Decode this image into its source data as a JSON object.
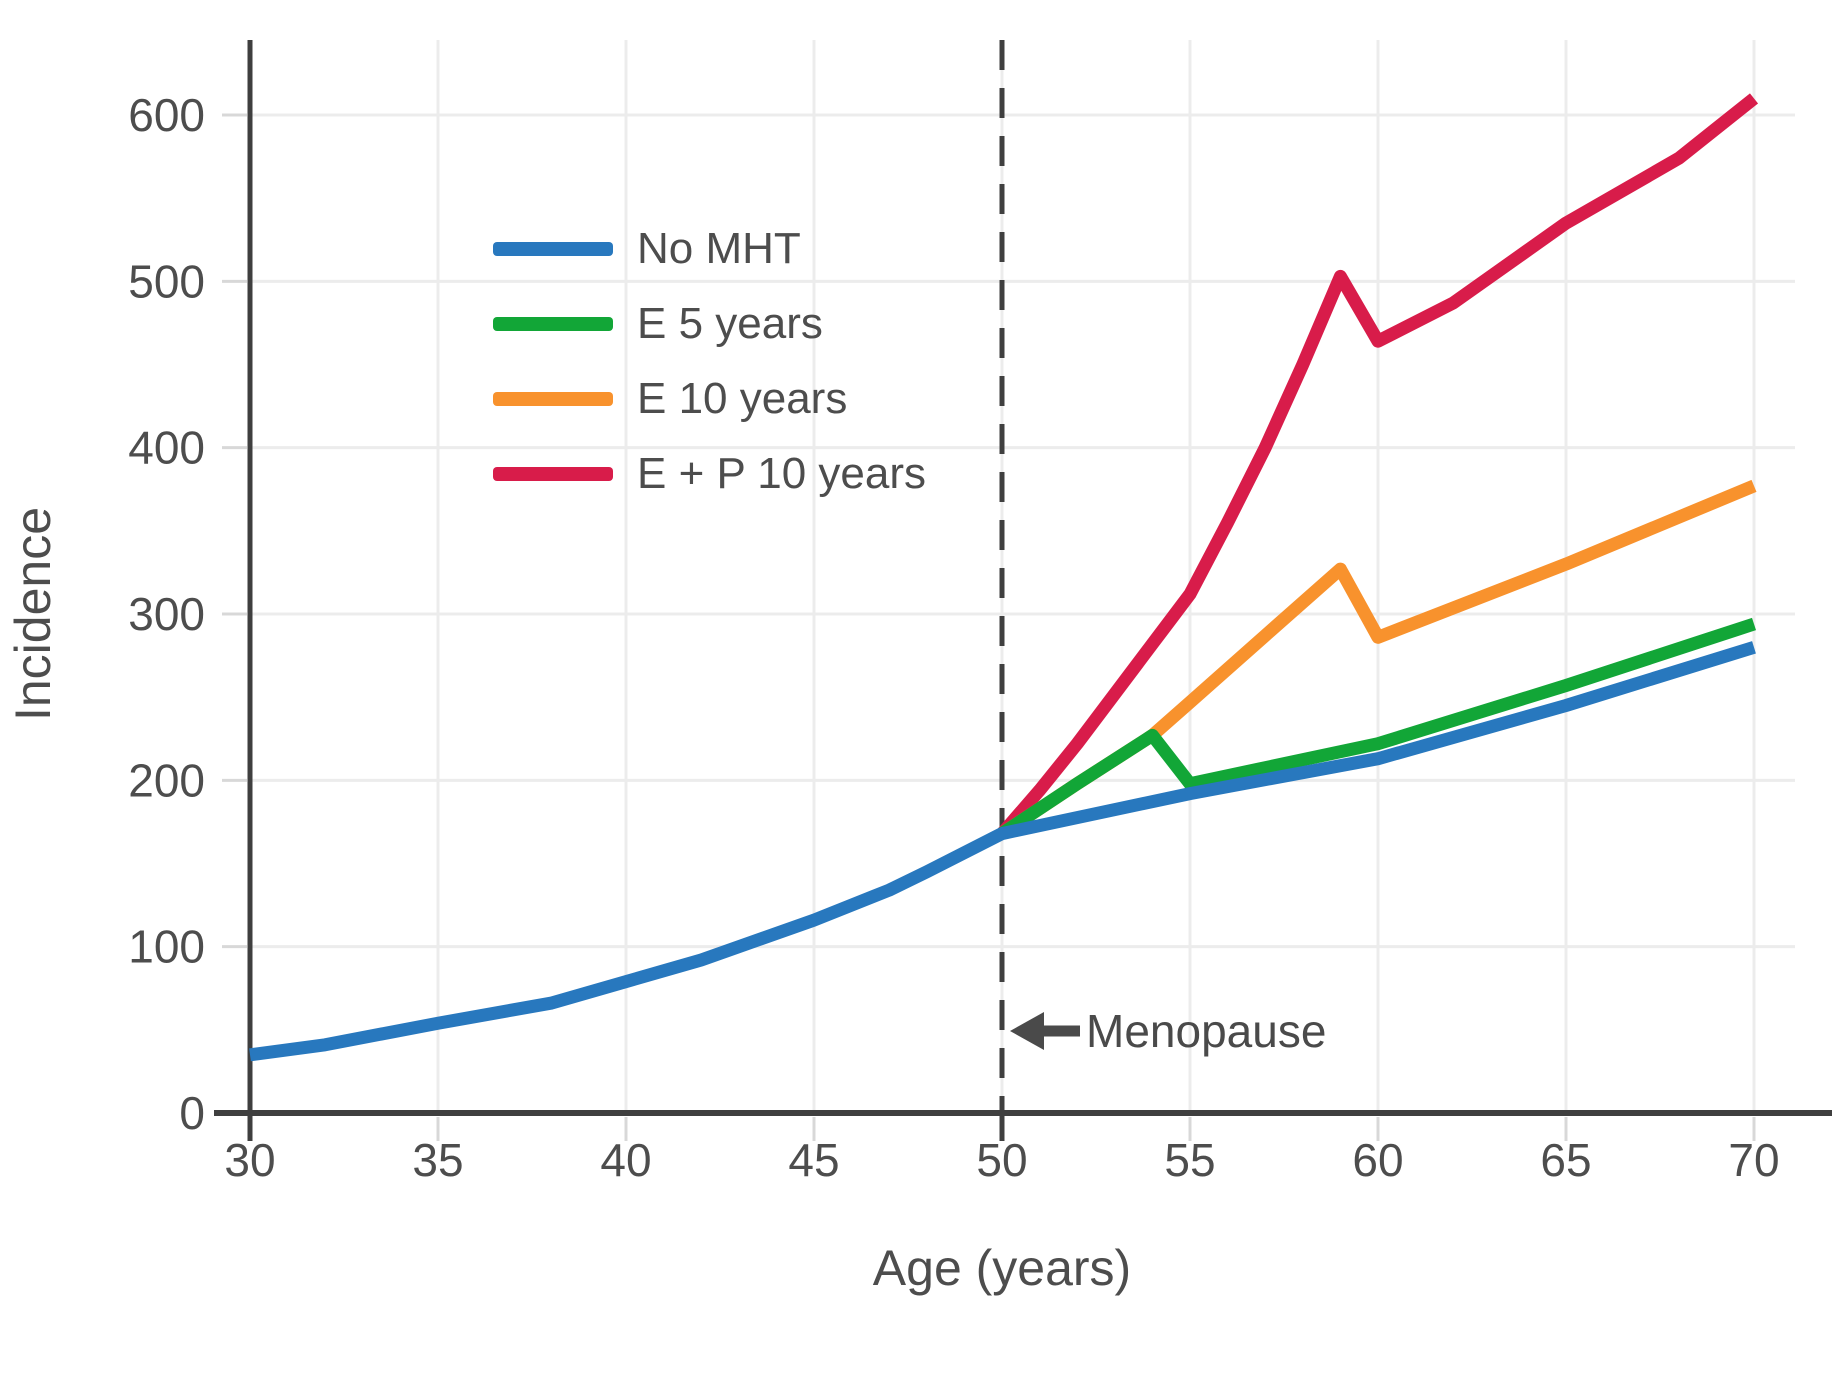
{
  "chart_data": {
    "type": "line",
    "title": "",
    "xlabel": "Age (years)",
    "ylabel": "Incidence",
    "x_ticks": [
      30,
      35,
      40,
      45,
      50,
      55,
      60,
      65,
      70
    ],
    "y_ticks": [
      0,
      100,
      200,
      300,
      400,
      500,
      600
    ],
    "x_range": [
      30,
      70
    ],
    "y_range": [
      0,
      660
    ],
    "grid": true,
    "series": [
      {
        "name": "No MHT",
        "color": "#2878BE",
        "points": [
          [
            30,
            35
          ],
          [
            32,
            41
          ],
          [
            35,
            54
          ],
          [
            38,
            66
          ],
          [
            40,
            79
          ],
          [
            42,
            92
          ],
          [
            45,
            116
          ],
          [
            47,
            134
          ],
          [
            48,
            145
          ],
          [
            50,
            168
          ],
          [
            55,
            192
          ],
          [
            60,
            213
          ],
          [
            65,
            245
          ],
          [
            70,
            280
          ]
        ]
      },
      {
        "name": "E 5 years",
        "color": "#12A637",
        "points": [
          [
            50,
            168
          ],
          [
            52,
            198
          ],
          [
            54,
            227
          ],
          [
            55,
            198
          ],
          [
            60,
            222
          ],
          [
            65,
            257
          ],
          [
            70,
            294
          ]
        ]
      },
      {
        "name": "E 10 years",
        "color": "#F8922D",
        "points": [
          [
            50,
            168
          ],
          [
            52,
            198
          ],
          [
            54,
            227
          ],
          [
            55,
            247
          ],
          [
            57,
            287
          ],
          [
            59,
            327
          ],
          [
            60,
            286
          ],
          [
            65,
            330
          ],
          [
            70,
            377
          ]
        ]
      },
      {
        "name": "E + P 10 years",
        "color": "#D81C4A",
        "points": [
          [
            50,
            168
          ],
          [
            51,
            194
          ],
          [
            52,
            222
          ],
          [
            53,
            252
          ],
          [
            54,
            282
          ],
          [
            55,
            312
          ],
          [
            56,
            355
          ],
          [
            57,
            400
          ],
          [
            58,
            450
          ],
          [
            59,
            503
          ],
          [
            60,
            464
          ],
          [
            62,
            487
          ],
          [
            65,
            535
          ],
          [
            68,
            574
          ],
          [
            70,
            610
          ]
        ]
      }
    ],
    "reference_line": {
      "x": 50,
      "style": "dashed",
      "color": "#3F3F3F"
    },
    "annotation": {
      "label": "Menopause",
      "arrow_direction": "left",
      "x": 50,
      "y": 50
    },
    "legend": {
      "position": "upper-left",
      "entries": [
        "No MHT",
        "E 5 years",
        "E 10 years",
        "E + P 10 years"
      ]
    },
    "colors": {
      "axis": "#3F3F3F",
      "gridline": "#ECECEC",
      "tick": "#D8D8D8",
      "text": "#4D4D4D"
    }
  }
}
